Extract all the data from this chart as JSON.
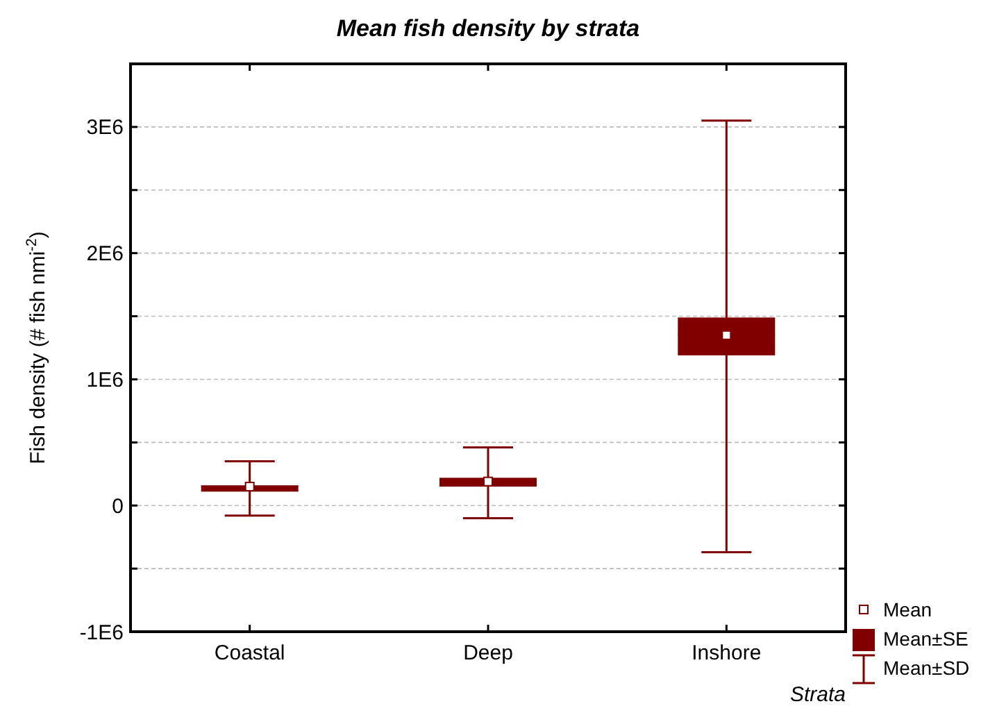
{
  "chart_data": {
    "type": "box",
    "title": "Mean fish density by strata",
    "xlabel": "Strata",
    "ylabel": "Fish density (# fish nmi$^{-2}$)",
    "categories": [
      "Coastal",
      "Deep",
      "Inshore"
    ],
    "color": "#800000",
    "boxes": [
      {
        "low": -80000,
        "q1": 110000,
        "median": 150000,
        "q3": 160000,
        "high": 350000,
        "mean": 150000
      },
      {
        "low": -100000,
        "q1": 150000,
        "median": 190000,
        "q3": 220000,
        "high": 460000,
        "mean": 190000
      },
      {
        "low": -370000,
        "q1": 1190000,
        "median": 1350000,
        "q3": 1490000,
        "high": 3050000,
        "mean": 1350000
      }
    ],
    "ylim": [
      -1000000,
      3500000
    ],
    "yticks": [
      {
        "value": -1000000,
        "label": "-1E6"
      },
      {
        "value": -500000,
        "label": null
      },
      {
        "value": 0,
        "label": "0"
      },
      {
        "value": 500000,
        "label": null
      },
      {
        "value": 1000000,
        "label": "1E6"
      },
      {
        "value": 1500000,
        "label": null
      },
      {
        "value": 2000000,
        "label": "2E6"
      },
      {
        "value": 2500000,
        "label": null
      },
      {
        "value": 3000000,
        "label": "3E6"
      }
    ],
    "grid": "y",
    "annotations": [
      "Mean",
      "Mean±SE",
      "Mean±SD"
    ]
  }
}
